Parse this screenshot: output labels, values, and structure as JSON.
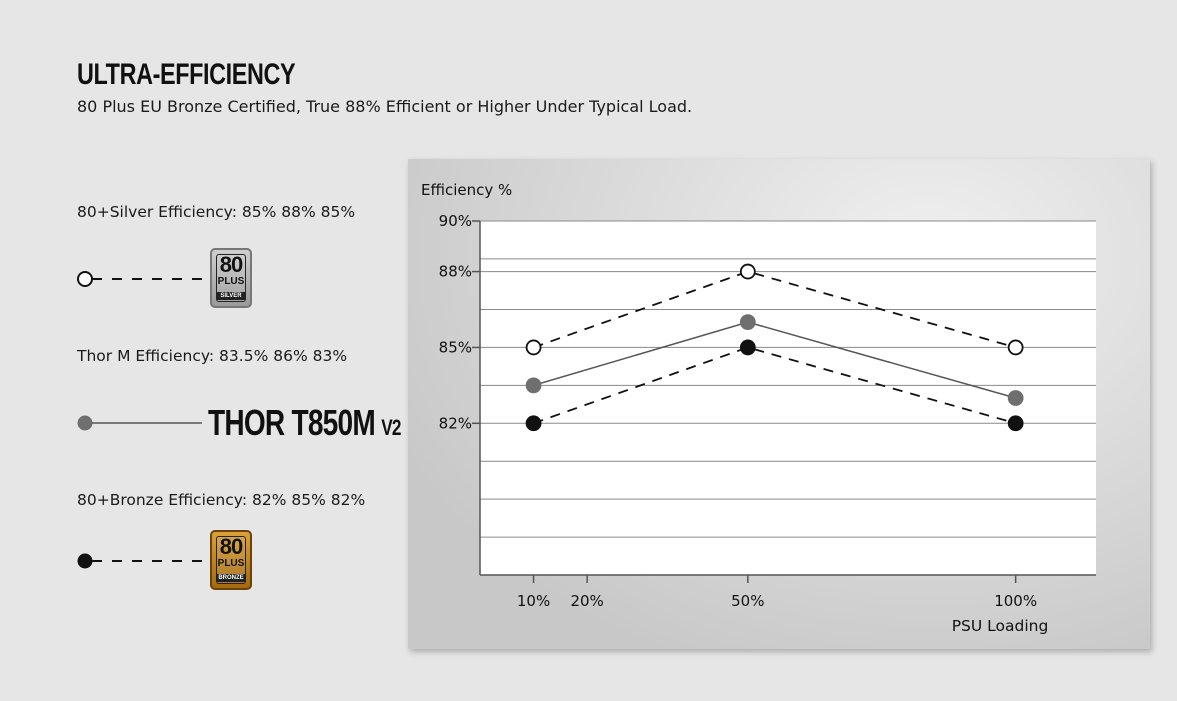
{
  "header": {
    "title": "ULTRA-EFFICIENCY",
    "subtitle": "80 Plus EU Bronze Certified, True 88% Efficient or Higher Under Typical Load."
  },
  "legend": {
    "silver": {
      "label": "80+Silver Efficiency: 85% 88% 85%",
      "badge_number": "80",
      "badge_plus": "PLUS",
      "badge_tier": "SILVER"
    },
    "thor": {
      "label": "Thor M Efficiency:  83.5% 86% 83%",
      "product_name": "THOR T850M",
      "product_version": "V2"
    },
    "bronze": {
      "label": "80+Bronze Efficiency: 82% 85% 82%",
      "badge_number": "80",
      "badge_plus": "PLUS",
      "badge_tier": "BRONZE"
    }
  },
  "chart_data": {
    "type": "line",
    "ylabel": "Efficiency %",
    "xlabel": "PSU Loading",
    "ylim": [
      76,
      90
    ],
    "y_ticks": [
      {
        "value": 90,
        "label": "90%"
      },
      {
        "value": 88,
        "label": "88%"
      },
      {
        "value": 85,
        "label": "85%"
      },
      {
        "value": 82,
        "label": "82%"
      }
    ],
    "y_gridlines": [
      90,
      88.5,
      88,
      86.5,
      85,
      83.5,
      82,
      80.5,
      79,
      77.5
    ],
    "xlim": [
      0,
      115
    ],
    "x_ticks": [
      {
        "value": 10,
        "label": "10%"
      },
      {
        "value": 20,
        "label": "20%"
      },
      {
        "value": 50,
        "label": "50%"
      },
      {
        "value": 100,
        "label": "100%"
      }
    ],
    "x": [
      10,
      50,
      100
    ],
    "series": [
      {
        "name": "80+Silver",
        "values": [
          85,
          88,
          85
        ],
        "style": "dashed",
        "marker": "open",
        "color": "#000000"
      },
      {
        "name": "Thor M",
        "values": [
          83.5,
          86,
          83
        ],
        "style": "solid",
        "marker": "gray",
        "color": "#555555"
      },
      {
        "name": "80+Bronze",
        "values": [
          82,
          85,
          82
        ],
        "style": "dashed",
        "marker": "filled",
        "color": "#000000"
      }
    ],
    "grid": true
  }
}
